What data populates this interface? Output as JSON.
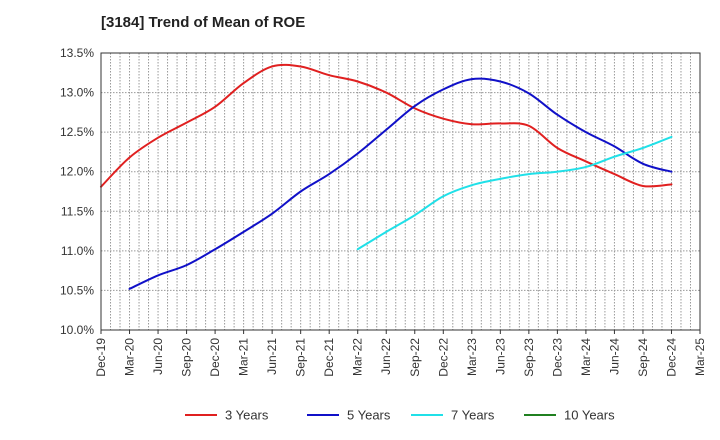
{
  "chart_data": {
    "type": "line",
    "title": "[3184]  Trend of Mean of ROE",
    "xlabel": "",
    "ylabel": "",
    "x_ticks": [
      "Dec-19",
      "Mar-20",
      "Jun-20",
      "Sep-20",
      "Dec-20",
      "Mar-21",
      "Jun-21",
      "Sep-21",
      "Dec-21",
      "Mar-22",
      "Jun-22",
      "Sep-22",
      "Dec-22",
      "Mar-23",
      "Jun-23",
      "Sep-23",
      "Dec-23",
      "Mar-24",
      "Jun-24",
      "Sep-24",
      "Dec-24",
      "Mar-25"
    ],
    "y_ticks": [
      "10.0%",
      "10.5%",
      "11.0%",
      "11.5%",
      "12.0%",
      "12.5%",
      "13.0%",
      "13.5%"
    ],
    "ylim": [
      10.0,
      13.5
    ],
    "grid": true,
    "legend_position": "bottom",
    "series": [
      {
        "name": "3 Years",
        "color": "#e02020",
        "points": [
          [
            "Dec-19",
            11.81
          ],
          [
            "Mar-20",
            12.18
          ],
          [
            "Jun-20",
            12.43
          ],
          [
            "Sep-20",
            12.62
          ],
          [
            "Dec-20",
            12.82
          ],
          [
            "Mar-21",
            13.12
          ],
          [
            "Jun-21",
            13.33
          ],
          [
            "Sep-21",
            13.33
          ],
          [
            "Dec-21",
            13.22
          ],
          [
            "Mar-22",
            13.14
          ],
          [
            "Jun-22",
            13.0
          ],
          [
            "Sep-22",
            12.8
          ],
          [
            "Dec-22",
            12.67
          ],
          [
            "Mar-23",
            12.6
          ],
          [
            "Jun-23",
            12.61
          ],
          [
            "Sep-23",
            12.58
          ],
          [
            "Dec-23",
            12.3
          ],
          [
            "Mar-24",
            12.13
          ],
          [
            "Jun-24",
            11.97
          ],
          [
            "Sep-24",
            11.82
          ],
          [
            "Dec-24",
            11.84
          ]
        ]
      },
      {
        "name": "5 Years",
        "color": "#1010c8",
        "points": [
          [
            "Mar-20",
            10.52
          ],
          [
            "Jun-20",
            10.69
          ],
          [
            "Sep-20",
            10.82
          ],
          [
            "Dec-20",
            11.02
          ],
          [
            "Mar-21",
            11.24
          ],
          [
            "Jun-21",
            11.47
          ],
          [
            "Sep-21",
            11.75
          ],
          [
            "Dec-21",
            11.97
          ],
          [
            "Mar-22",
            12.23
          ],
          [
            "Jun-22",
            12.53
          ],
          [
            "Sep-22",
            12.83
          ],
          [
            "Dec-22",
            13.04
          ],
          [
            "Mar-23",
            13.17
          ],
          [
            "Jun-23",
            13.14
          ],
          [
            "Sep-23",
            12.99
          ],
          [
            "Dec-23",
            12.72
          ],
          [
            "Mar-24",
            12.5
          ],
          [
            "Jun-24",
            12.32
          ],
          [
            "Sep-24",
            12.1
          ],
          [
            "Dec-24",
            12.0
          ]
        ]
      },
      {
        "name": "7 Years",
        "color": "#20e0e8",
        "points": [
          [
            "Mar-22",
            11.02
          ],
          [
            "Jun-22",
            11.24
          ],
          [
            "Sep-22",
            11.45
          ],
          [
            "Dec-22",
            11.69
          ],
          [
            "Mar-23",
            11.83
          ],
          [
            "Jun-23",
            11.91
          ],
          [
            "Sep-23",
            11.97
          ],
          [
            "Dec-23",
            12.0
          ],
          [
            "Mar-24",
            12.06
          ],
          [
            "Jun-24",
            12.19
          ],
          [
            "Sep-24",
            12.3
          ],
          [
            "Dec-24",
            12.44
          ]
        ]
      },
      {
        "name": "10 Years",
        "color": "#208020",
        "points": []
      }
    ]
  }
}
